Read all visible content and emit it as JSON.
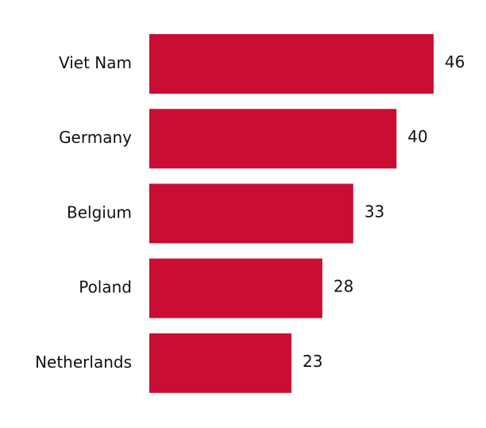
{
  "chart_data": {
    "type": "bar",
    "orientation": "horizontal",
    "categories": [
      "Viet Nam",
      "Germany",
      "Belgium",
      "Poland",
      "Netherlands"
    ],
    "values": [
      46,
      40,
      33,
      28,
      23
    ],
    "color": "#c90d33"
  }
}
